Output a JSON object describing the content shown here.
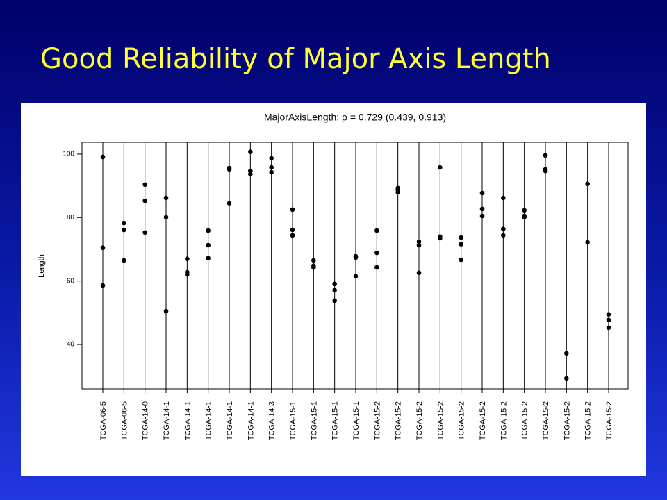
{
  "slide_title": "Good Reliability of Major Axis Length",
  "chart_data": {
    "type": "strip",
    "title": "MajorAxisLength: ρ = 0.729 (0.439, 0.913)",
    "y_label": "Length",
    "categories": [
      "TCGA-06-5",
      "TCGA-06-5",
      "TCGA-14-0",
      "TCGA-14-1",
      "TCGA-14-1",
      "TCGA-14-1",
      "TCGA-14-1",
      "TCGA-14-1",
      "TCGA-14-3",
      "TCGA-15-1",
      "TCGA-15-1",
      "TCGA-15-1",
      "TCGA-15-1",
      "TCGA-15-2",
      "TCGA-15-2",
      "TCGA-15-2",
      "TCGA-15-2",
      "TCGA-15-2",
      "TCGA-15-2",
      "TCGA-15-2",
      "TCGA-15-2",
      "TCGA-15-2",
      "TCGA-15-2",
      "TCGA-15-2",
      "TCGA-15-2"
    ],
    "values": [
      [
        99.1,
        70.5,
        58.6
      ],
      [
        78.3,
        76.1,
        66.5
      ],
      [
        90.4,
        85.3,
        75.3
      ],
      [
        86.2,
        80.1,
        50.5
      ],
      [
        67.0,
        62.8,
        62.1
      ],
      [
        75.9,
        71.3,
        67.2
      ],
      [
        95.6,
        95.2,
        84.5
      ],
      [
        100.7,
        94.7,
        93.7
      ],
      [
        98.7,
        95.8,
        94.3
      ],
      [
        82.5,
        76.1,
        74.4
      ],
      [
        66.5,
        64.8,
        64.3
      ],
      [
        59.1,
        57.1,
        53.8
      ],
      [
        67.8,
        67.4,
        61.5
      ],
      [
        75.9,
        68.9,
        64.3
      ],
      [
        89.3,
        88.8,
        88.0
      ],
      [
        72.4,
        71.3,
        62.6
      ],
      [
        95.8,
        74.0,
        73.5
      ],
      [
        73.7,
        71.6,
        66.7
      ],
      [
        87.7,
        82.7,
        80.5
      ],
      [
        86.2,
        76.4,
        74.4
      ],
      [
        82.3,
        80.5,
        80.1
      ],
      [
        99.6,
        95.2,
        94.7
      ],
      [
        37.2,
        29.3,
        null
      ],
      [
        90.6,
        72.2,
        null
      ],
      [
        49.5,
        47.7,
        45.3
      ]
    ],
    "color": "#000000",
    "ylim": [
      26,
      103.7
    ],
    "yticks": [
      40,
      60,
      80,
      100
    ]
  }
}
